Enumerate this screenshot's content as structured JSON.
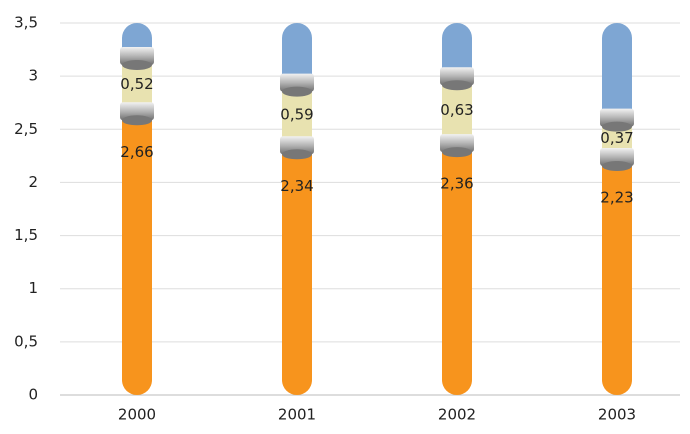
{
  "chart_data": {
    "type": "stacked_capsule_bar",
    "categories": [
      "2000",
      "2001",
      "2002",
      "2003"
    ],
    "series": [
      {
        "color": "#f7941d",
        "values": [
          2.66,
          2.34,
          2.36,
          2.23
        ],
        "value_labels": [
          "2,66",
          "2,34",
          "2,36",
          "2,23"
        ]
      },
      {
        "color": "#e8e2b0",
        "values": [
          0.52,
          0.59,
          0.63,
          0.37
        ],
        "value_labels": [
          "0,52",
          "0,59",
          "0,63",
          "0,37"
        ]
      },
      {
        "color": "#7ea6d3",
        "values": [
          0.32,
          0.57,
          0.51,
          0.9
        ]
      }
    ],
    "ylim": [
      0,
      3.5
    ],
    "yticks": [
      0,
      {
        "value": 0.5,
        "label": "0,5"
      },
      1,
      {
        "value": 1.5,
        "label": "1,5"
      },
      2,
      {
        "value": 2.5,
        "label": "2,5"
      },
      3,
      {
        "value": 3.5,
        "label": "3,5"
      }
    ],
    "grid": true
  }
}
